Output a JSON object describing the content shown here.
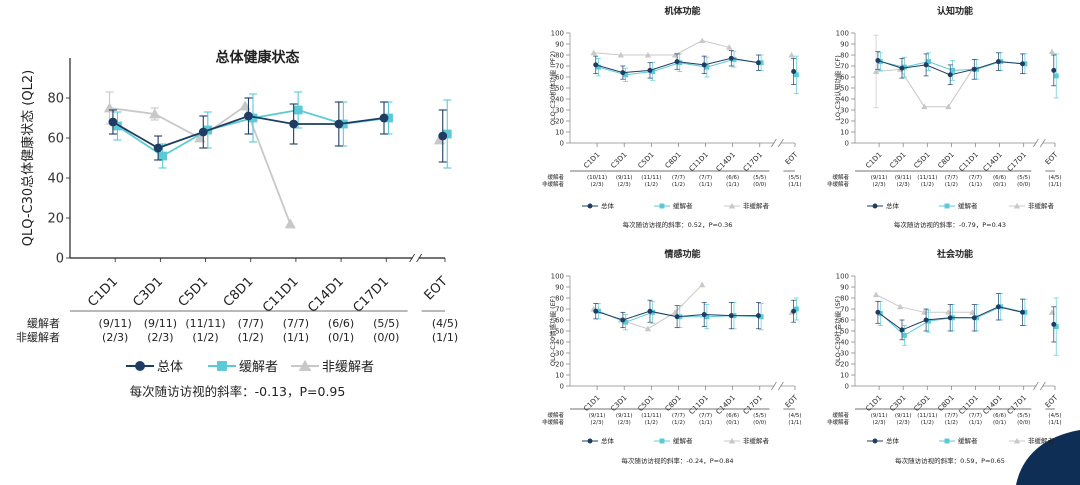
{
  "legend_labels": [
    "总体",
    "缓解者",
    "非缓解者"
  ],
  "series_colors": {
    "overall": "#1f3c63",
    "responder": "#5ccad6",
    "nonresponder": "#c8c8c8"
  },
  "series_markers": {
    "overall": "circle",
    "responder": "square",
    "nonresponder": "triangle"
  },
  "row_labels": [
    "缓解者",
    "非缓解者"
  ],
  "decorative": {
    "corner_shape_color": "#0f2e56"
  },
  "chart_data": [
    {
      "id": "ql2",
      "type": "line",
      "title": "总体健康状态",
      "ylabel": "QLQ-C30总体健康状态 (QL2)",
      "ylim": [
        0,
        100
      ],
      "yticks": [
        0,
        20,
        40,
        60,
        80
      ],
      "categories": [
        "C1D1",
        "C3D1",
        "C5D1",
        "C8D1",
        "C11D1",
        "C14D1",
        "C17D1",
        "EOT"
      ],
      "responder_counts": [
        "(9/11)",
        "(9/11)",
        "(11/11)",
        "(7/7)",
        "(7/7)",
        "(6/6)",
        "(5/5)",
        "(4/5)"
      ],
      "nonresponder_counts": [
        "(2/3)",
        "(2/3)",
        "(1/2)",
        "(1/2)",
        "(1/1)",
        "(0/1)",
        "(0/0)",
        "(1/1)"
      ],
      "series": [
        {
          "name": "总体",
          "key": "overall",
          "values": [
            68,
            55,
            63,
            71,
            67,
            67,
            70,
            61
          ],
          "err": [
            6,
            6,
            8,
            9,
            10,
            11,
            8,
            13
          ]
        },
        {
          "name": "缓解者",
          "key": "responder",
          "values": [
            66,
            51,
            64,
            70,
            74,
            67,
            70,
            62
          ],
          "err": [
            7,
            6,
            9,
            12,
            9,
            11,
            8,
            17
          ]
        },
        {
          "name": "非缓解者",
          "key": "nonresponder",
          "values": [
            75,
            72,
            60,
            76,
            17,
            null,
            null,
            59
          ],
          "err": [
            8,
            3,
            1,
            0,
            0,
            0,
            0,
            0
          ]
        }
      ],
      "slope_text": "每次随访访视的斜率：-0.13，P=0.95"
    },
    {
      "id": "pf2",
      "type": "line",
      "title": "机体功能",
      "ylabel": "QLQ-C30机体功能 (PF2)",
      "ylim": [
        0,
        100
      ],
      "yticks": [
        0,
        10,
        20,
        30,
        40,
        50,
        60,
        70,
        80,
        90,
        100
      ],
      "categories": [
        "C1D1",
        "C3D1",
        "C5D1",
        "C8D1",
        "C11D1",
        "C14D1",
        "C17D1",
        "EOT"
      ],
      "responder_counts": [
        "(10/11)",
        "(9/11)",
        "(11/11)",
        "(7/7)",
        "(7/7)",
        "(6/6)",
        "(5/5)",
        "(5/5)"
      ],
      "nonresponder_counts": [
        "(2/3)",
        "(2/3)",
        "(1/2)",
        "(1/2)",
        "(1/1)",
        "(1/1)",
        "(0/0)",
        "(1/1)"
      ],
      "series": [
        {
          "name": "总体",
          "key": "overall",
          "values": [
            71,
            64,
            66,
            74,
            71,
            77,
            73,
            65
          ],
          "err": [
            8,
            6,
            7,
            7,
            8,
            7,
            7,
            12
          ]
        },
        {
          "name": "缓解者",
          "key": "responder",
          "values": [
            69,
            62,
            65,
            73,
            69,
            76,
            73,
            62
          ],
          "err": [
            8,
            6,
            8,
            8,
            9,
            7,
            7,
            17
          ]
        },
        {
          "name": "非缓解者",
          "key": "nonresponder",
          "values": [
            82,
            80,
            80,
            80,
            93,
            87,
            null,
            80
          ],
          "err": [
            0,
            0,
            0,
            0,
            0,
            0,
            0,
            0
          ]
        }
      ],
      "slope_text": "每次随访访视的斜率：0.52，P=0.36"
    },
    {
      "id": "cf",
      "type": "line",
      "title": "认知功能",
      "ylabel": "LQ-C30认知功能 (CF)",
      "ylim": [
        0,
        100
      ],
      "yticks": [
        0,
        10,
        20,
        30,
        40,
        50,
        60,
        70,
        80,
        90,
        100
      ],
      "categories": [
        "C1D1",
        "C3D1",
        "C5D1",
        "C8D1",
        "C11D1",
        "C14D1",
        "C17D1",
        "EOT"
      ],
      "responder_counts": [
        "(9/11)",
        "(9/11)",
        "(11/11)",
        "(7/7)",
        "(7/7)",
        "(6/6)",
        "(5/5)",
        "(4/5)"
      ],
      "nonresponder_counts": [
        "(2/3)",
        "(2/3)",
        "(1/2)",
        "(1/2)",
        "(1/1)",
        "(0/1)",
        "(0/0)",
        "(1/1)"
      ],
      "series": [
        {
          "name": "总体",
          "key": "overall",
          "values": [
            75,
            68,
            71,
            62,
            67,
            74,
            72,
            66
          ],
          "err": [
            8,
            9,
            10,
            9,
            9,
            8,
            9,
            14
          ]
        },
        {
          "name": "缓解者",
          "key": "responder",
          "values": [
            74,
            69,
            74,
            66,
            67,
            74,
            72,
            61
          ],
          "err": [
            8,
            9,
            8,
            9,
            9,
            8,
            9,
            20
          ]
        },
        {
          "name": "非缓解者",
          "key": "nonresponder",
          "values": [
            65,
            67,
            33,
            33,
            67,
            null,
            null,
            83
          ],
          "err": [
            33,
            0,
            0,
            0,
            0,
            0,
            0,
            0
          ]
        }
      ],
      "slope_text": "每次随访访视的斜率：-0.79，P=0.43"
    },
    {
      "id": "ef",
      "type": "line",
      "title": "情感功能",
      "ylabel": "QLQ-C30情感功能 (EF)",
      "ylim": [
        0,
        100
      ],
      "yticks": [
        0,
        10,
        20,
        30,
        40,
        50,
        60,
        70,
        80,
        90,
        100
      ],
      "categories": [
        "C1D1",
        "C3D1",
        "C5D1",
        "C8D1",
        "C11D1",
        "C14D1",
        "C17D1",
        "EOT"
      ],
      "responder_counts": [
        "(9/11)",
        "(9/11)",
        "(11/11)",
        "(7/7)",
        "(7/7)",
        "(6/6)",
        "(5/5)",
        "(4/5)"
      ],
      "nonresponder_counts": [
        "(2/3)",
        "(2/3)",
        "(1/2)",
        "(1/2)",
        "(1/1)",
        "(0/1)",
        "(0/0)",
        "(1/1)"
      ],
      "series": [
        {
          "name": "总体",
          "key": "overall",
          "values": [
            68,
            60,
            68,
            63,
            65,
            64,
            64,
            68
          ],
          "err": [
            7,
            7,
            10,
            10,
            11,
            12,
            12,
            10
          ]
        },
        {
          "name": "缓解者",
          "key": "responder",
          "values": [
            68,
            58,
            67,
            63,
            63,
            64,
            63,
            70
          ],
          "err": [
            7,
            7,
            10,
            10,
            11,
            12,
            12,
            10
          ]
        },
        {
          "name": "非缓解者",
          "key": "nonresponder",
          "values": [
            70,
            60,
            52,
            67,
            92,
            null,
            null,
            67
          ],
          "err": [
            0,
            0,
            0,
            0,
            0,
            0,
            0,
            0
          ]
        }
      ],
      "slope_text": "每次随访访视的斜率：-0.24，P=0.84"
    },
    {
      "id": "sf",
      "type": "line",
      "title": "社会功能",
      "ylabel": "QLQ-C30社会功能 (SF)",
      "ylim": [
        0,
        100
      ],
      "yticks": [
        0,
        10,
        20,
        30,
        40,
        50,
        60,
        70,
        80,
        90,
        100
      ],
      "categories": [
        "C1D1",
        "C3D1",
        "C5D1",
        "C8D1",
        "C11D1",
        "C14D1",
        "C17D1",
        "EOT"
      ],
      "responder_counts": [
        "(9/11)",
        "(9/11)",
        "(11/11)",
        "(7/7)",
        "(7/7)",
        "(6/6)",
        "(5/5)",
        "(4/5)"
      ],
      "nonresponder_counts": [
        "(2/3)",
        "(2/3)",
        "(1/2)",
        "(1/2)",
        "(1/1)",
        "(0/1)",
        "(0/0)",
        "(1/1)"
      ],
      "series": [
        {
          "name": "总体",
          "key": "overall",
          "values": [
            67,
            51,
            60,
            62,
            62,
            72,
            67,
            56
          ],
          "err": [
            10,
            9,
            10,
            12,
            12,
            12,
            12,
            16
          ]
        },
        {
          "name": "缓解者",
          "key": "responder",
          "values": [
            66,
            46,
            59,
            62,
            62,
            72,
            67,
            54
          ],
          "err": [
            11,
            9,
            10,
            12,
            12,
            12,
            12,
            26
          ]
        },
        {
          "name": "非缓解者",
          "key": "nonresponder",
          "values": [
            83,
            72,
            67,
            67,
            67,
            null,
            null,
            67
          ],
          "err": [
            0,
            0,
            0,
            0,
            0,
            0,
            0,
            0
          ]
        }
      ],
      "slope_text": "每次随访访视的斜率：0.59，P=0.65"
    }
  ]
}
